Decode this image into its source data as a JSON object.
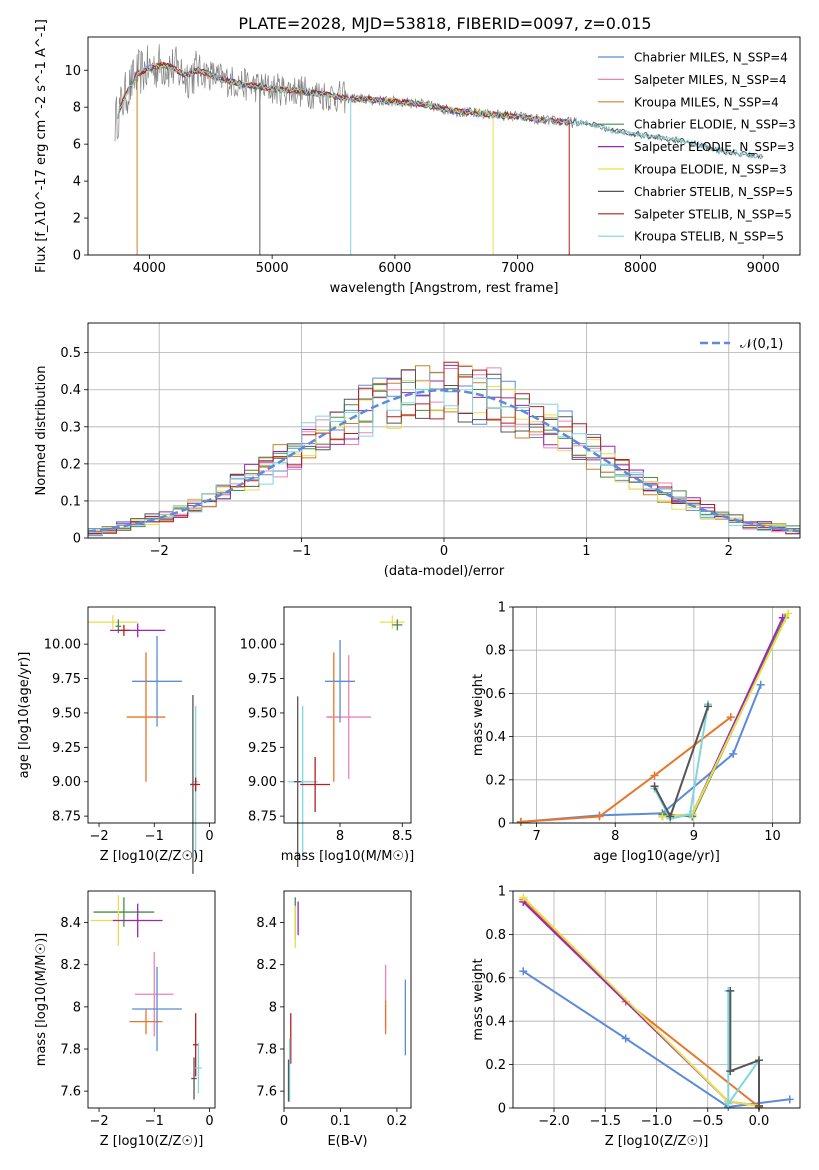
{
  "title": "PLATE=2028, MJD=53818, FIBERID=0097, z=0.015",
  "colors": {
    "chabrier_miles": "#5b8bd9",
    "salpeter_miles": "#ef82b5",
    "kroupa_miles": "#c8832a",
    "chabrier_elodie": "#4a8a4a",
    "salpeter_elodie": "#9a27b5",
    "kroupa_elodie": "#e6e04a",
    "chabrier_stelib": "#555555",
    "salpeter_stelib": "#b81d1d",
    "kroupa_stelib": "#7fd6df",
    "spectrum_data": "#808080",
    "orange_marker": "#e8752a"
  },
  "chart_data": [
    {
      "type": "line",
      "panel": "spectrum",
      "xlabel": "wavelength [Angstrom, rest frame]",
      "ylabel": "Flux [f_λ10^-17 erg cm^-2 s^-1 A^-1]",
      "xlim": [
        3500,
        9300
      ],
      "ylim": [
        0,
        11.8
      ],
      "xticks": [
        4000,
        5000,
        6000,
        7000,
        8000,
        9000
      ],
      "yticks": [
        0,
        2,
        4,
        6,
        8,
        10
      ],
      "legend_position": "top-right",
      "legend": [
        {
          "label": "Chabrier MILES, N_SSP=4",
          "color_key": "chabrier_miles"
        },
        {
          "label": "Salpeter MILES, N_SSP=4",
          "color_key": "salpeter_miles"
        },
        {
          "label": "Kroupa MILES, N_SSP=4",
          "color_key": "kroupa_miles"
        },
        {
          "label": "Chabrier ELODIE, N_SSP=3",
          "color_key": "chabrier_elodie"
        },
        {
          "label": "Salpeter ELODIE, N_SSP=3",
          "color_key": "salpeter_elodie"
        },
        {
          "label": "Kroupa ELODIE, N_SSP=3",
          "color_key": "kroupa_elodie"
        },
        {
          "label": "Chabrier STELIB, N_SSP=5",
          "color_key": "chabrier_stelib"
        },
        {
          "label": "Salpeter STELIB, N_SSP=5",
          "color_key": "salpeter_stelib"
        },
        {
          "label": "Kroupa STELIB, N_SSP=5",
          "color_key": "kroupa_stelib"
        }
      ],
      "continuum": {
        "x": [
          3720,
          3800,
          3900,
          4000,
          4100,
          4200,
          4300,
          4400,
          4600,
          4800,
          5000,
          5200,
          5400,
          5600,
          5800,
          6000,
          6200,
          6400,
          6600,
          6800,
          7000,
          7200,
          7400,
          7600,
          7800,
          8000,
          8200,
          8400,
          8600,
          8800,
          9000
        ],
        "y": [
          7.2,
          8.6,
          9.8,
          10.1,
          10.3,
          10.1,
          9.7,
          10.0,
          9.5,
          9.2,
          9.0,
          8.9,
          8.7,
          8.5,
          8.4,
          8.3,
          8.2,
          7.9,
          7.7,
          7.6,
          7.5,
          7.3,
          7.2,
          7.1,
          6.7,
          6.5,
          6.3,
          6.1,
          5.7,
          5.5,
          5.3
        ]
      }
    },
    {
      "type": "histogram",
      "panel": "residual_histogram",
      "xlabel": "(data-model)/error",
      "ylabel": "Normed distribution",
      "xlim": [
        -2.5,
        2.5
      ],
      "ylim": [
        0,
        0.58
      ],
      "xticks": [
        -2,
        -1,
        0,
        1,
        2
      ],
      "yticks": [
        0,
        0.1,
        0.2,
        0.3,
        0.4,
        0.5
      ],
      "grid": true,
      "legend_position": "top-right",
      "legend": [
        {
          "label": "𝒩(0,1)",
          "color_key": "chabrier_miles",
          "style": "dashed"
        }
      ],
      "bin_width": 0.1,
      "bin_start": -2.5,
      "reference_curve": "standard normal density"
    },
    {
      "type": "scatter",
      "panel": "age_vs_Z",
      "xlabel": "Z [log10(Z/Z☉)]",
      "ylabel": "age  [log10(age/yr)]",
      "xlim": [
        -2.2,
        0.1
      ],
      "ylim": [
        8.7,
        10.27
      ],
      "xticks": [
        -2,
        -1,
        0
      ],
      "yticks": [
        8.75,
        9.0,
        9.25,
        9.5,
        9.75,
        10.0
      ],
      "ytick_labels": [
        "8.75",
        "9.00",
        "9.25",
        "9.50",
        "9.75",
        "10.00"
      ],
      "points": [
        {
          "x": -1.75,
          "y": 10.16,
          "xerr": 0.45,
          "yerr": 0.05,
          "color_key": "kroupa_elodie"
        },
        {
          "x": -1.65,
          "y": 10.13,
          "xerr": 0.05,
          "yerr": 0.05,
          "color_key": "chabrier_elodie"
        },
        {
          "x": -1.3,
          "y": 10.1,
          "xerr": 0.5,
          "yerr": 0.05,
          "color_key": "salpeter_elodie"
        },
        {
          "x": -1.55,
          "y": 10.1,
          "xerr": 0.1,
          "yerr": 0.04,
          "color_key": "salpeter_stelib"
        },
        {
          "x": -1.15,
          "y": 9.47,
          "xerr": 0.35,
          "yerr": 0.47,
          "color_key": "orange_marker"
        },
        {
          "x": -0.95,
          "y": 9.73,
          "xerr": 0.45,
          "yerr": 0.33,
          "color_key": "chabrier_miles"
        },
        {
          "x": -0.25,
          "y": 9.0,
          "xerr": 0.05,
          "yerr": 0.55,
          "color_key": "kroupa_stelib"
        },
        {
          "x": -0.3,
          "y": 8.98,
          "xerr": 0.05,
          "yerr": 0.65,
          "color_key": "chabrier_stelib"
        },
        {
          "x": -0.25,
          "y": 8.98,
          "xerr": 0.08,
          "yerr": 0.05,
          "color_key": "salpeter_stelib"
        }
      ]
    },
    {
      "type": "scatter",
      "panel": "age_vs_mass",
      "xlabel": "mass [log10(M/M☉)]",
      "ylabel": "",
      "xlim": [
        7.55,
        8.57
      ],
      "ylim": [
        8.7,
        10.27
      ],
      "xticks": [
        8.0,
        8.5
      ],
      "yticks": [
        8.75,
        9.0,
        9.25,
        9.5,
        9.75,
        10.0
      ],
      "ytick_labels": [
        "8.75",
        "9.00",
        "9.25",
        "9.50",
        "9.75",
        "10.00"
      ],
      "points": [
        {
          "x": 8.42,
          "y": 10.16,
          "xerr": 0.1,
          "yerr": 0.05,
          "color_key": "kroupa_elodie"
        },
        {
          "x": 8.46,
          "y": 10.14,
          "xerr": 0.04,
          "yerr": 0.04,
          "color_key": "chabrier_elodie"
        },
        {
          "x": 7.95,
          "y": 9.47,
          "xerr": 0.05,
          "yerr": 0.47,
          "color_key": "orange_marker"
        },
        {
          "x": 8.07,
          "y": 9.47,
          "xerr": 0.18,
          "yerr": 0.45,
          "color_key": "salpeter_miles"
        },
        {
          "x": 8.0,
          "y": 9.73,
          "xerr": 0.12,
          "yerr": 0.3,
          "color_key": "chabrier_miles"
        },
        {
          "x": 7.7,
          "y": 9.0,
          "xerr": 0.12,
          "yerr": 0.55,
          "color_key": "kroupa_stelib"
        },
        {
          "x": 7.8,
          "y": 8.98,
          "xerr": 0.12,
          "yerr": 0.2,
          "color_key": "salpeter_stelib"
        },
        {
          "x": 7.66,
          "y": 9.0,
          "xerr": 0.03,
          "yerr": 0.62,
          "color_key": "chabrier_stelib"
        }
      ]
    },
    {
      "type": "line",
      "panel": "massweight_vs_age",
      "xlabel": "age  [log10(age/yr)]",
      "ylabel": "mass weight",
      "xlim": [
        6.7,
        10.35
      ],
      "ylim": [
        0,
        1.0
      ],
      "xticks": [
        7,
        8,
        9,
        10
      ],
      "yticks": [
        0,
        0.2,
        0.4,
        0.6,
        0.8,
        1.0
      ],
      "grid": true,
      "series": [
        {
          "color_key": "chabrier_miles",
          "x": [
            6.8,
            7.8,
            8.6,
            9.5,
            9.85
          ],
          "y": [
            0.005,
            0.035,
            0.045,
            0.32,
            0.64
          ]
        },
        {
          "color_key": "orange_marker",
          "x": [
            6.8,
            7.8,
            8.5,
            9.47
          ],
          "y": [
            0.005,
            0.03,
            0.22,
            0.49
          ]
        },
        {
          "color_key": "chabrier_elodie",
          "x": [
            8.6,
            8.98,
            10.16
          ],
          "y": [
            0.04,
            0.03,
            0.95
          ]
        },
        {
          "color_key": "salpeter_elodie",
          "x": [
            8.6,
            8.98,
            10.13
          ],
          "y": [
            0.03,
            0.04,
            0.95
          ]
        },
        {
          "color_key": "kroupa_elodie",
          "x": [
            8.6,
            8.98,
            10.2
          ],
          "y": [
            0.03,
            0.04,
            0.97
          ]
        },
        {
          "color_key": "kroupa_stelib",
          "x": [
            8.5,
            8.7,
            8.95,
            9.18
          ],
          "y": [
            0.16,
            0.02,
            0.04,
            0.55
          ]
        },
        {
          "color_key": "chabrier_stelib",
          "x": [
            8.5,
            8.7,
            9.18
          ],
          "y": [
            0.17,
            0.03,
            0.54
          ]
        }
      ]
    },
    {
      "type": "scatter",
      "panel": "mass_vs_Z",
      "xlabel": "Z [log10(Z/Z☉)]",
      "ylabel": "mass [log10(M/M☉)]",
      "xlim": [
        -2.2,
        0.1
      ],
      "ylim": [
        7.52,
        8.55
      ],
      "xticks": [
        -2,
        -1,
        0
      ],
      "yticks": [
        7.6,
        7.8,
        8.0,
        8.2,
        8.4
      ],
      "points": [
        {
          "x": -1.55,
          "y": 8.45,
          "xerr": 0.55,
          "yerr": 0.07,
          "color_key": "chabrier_elodie"
        },
        {
          "x": -1.65,
          "y": 8.41,
          "xerr": 0.5,
          "yerr": 0.12,
          "color_key": "kroupa_elodie"
        },
        {
          "x": -1.3,
          "y": 8.41,
          "xerr": 0.45,
          "yerr": 0.08,
          "color_key": "salpeter_elodie"
        },
        {
          "x": -1.0,
          "y": 8.06,
          "xerr": 0.35,
          "yerr": 0.2,
          "color_key": "salpeter_miles"
        },
        {
          "x": -1.15,
          "y": 7.93,
          "xerr": 0.3,
          "yerr": 0.06,
          "color_key": "orange_marker"
        },
        {
          "x": -0.95,
          "y": 7.99,
          "xerr": 0.45,
          "yerr": 0.2,
          "color_key": "chabrier_miles"
        },
        {
          "x": -0.25,
          "y": 7.82,
          "xerr": 0.05,
          "yerr": 0.15,
          "color_key": "salpeter_stelib"
        },
        {
          "x": -0.28,
          "y": 7.66,
          "xerr": 0.05,
          "yerr": 0.1,
          "color_key": "chabrier_stelib"
        },
        {
          "x": -0.2,
          "y": 7.71,
          "xerr": 0.06,
          "yerr": 0.12,
          "color_key": "kroupa_stelib"
        }
      ]
    },
    {
      "type": "scatter",
      "panel": "mass_vs_EBV",
      "xlabel": "E(B-V)",
      "ylabel": "",
      "xlim": [
        0.0,
        0.225
      ],
      "ylim": [
        7.52,
        8.55
      ],
      "xticks": [
        0.0,
        0.1,
        0.2
      ],
      "yticks": [
        7.6,
        7.8,
        8.0,
        8.2,
        8.4
      ],
      "points": [
        {
          "x": 0.02,
          "y": 8.42,
          "yerr": 0.1,
          "color_key": "chabrier_elodie"
        },
        {
          "x": 0.02,
          "y": 8.38,
          "yerr": 0.1,
          "color_key": "kroupa_elodie"
        },
        {
          "x": 0.025,
          "y": 8.42,
          "yerr": 0.08,
          "color_key": "salpeter_elodie"
        },
        {
          "x": 0.18,
          "y": 8.05,
          "yerr": 0.15,
          "color_key": "salpeter_miles"
        },
        {
          "x": 0.18,
          "y": 7.95,
          "yerr": 0.08,
          "color_key": "orange_marker"
        },
        {
          "x": 0.215,
          "y": 7.95,
          "yerr": 0.18,
          "color_key": "chabrier_miles"
        },
        {
          "x": 0.012,
          "y": 7.85,
          "yerr": 0.12,
          "color_key": "salpeter_stelib"
        },
        {
          "x": 0.01,
          "y": 7.7,
          "yerr": 0.15,
          "color_key": "kroupa_stelib"
        },
        {
          "x": 0.008,
          "y": 7.65,
          "yerr": 0.1,
          "color_key": "chabrier_stelib"
        }
      ]
    },
    {
      "type": "line",
      "panel": "massweight_vs_Z",
      "xlabel": "Z [log10(Z/Z☉)]",
      "ylabel": "mass weight",
      "xlim": [
        -2.4,
        0.4
      ],
      "ylim": [
        0,
        1.0
      ],
      "xticks": [
        -2.0,
        -1.5,
        -1.0,
        -0.5,
        0.0
      ],
      "xtick_labels": [
        "−2.0",
        "−1.5",
        "−1.0",
        "−0.5",
        "0.0"
      ],
      "yticks": [
        0,
        0.2,
        0.4,
        0.6,
        0.8,
        1.0
      ],
      "grid": true,
      "series": [
        {
          "color_key": "chabrier_miles",
          "x": [
            -2.3,
            -1.3,
            -0.3,
            0.3
          ],
          "y": [
            0.63,
            0.32,
            0.005,
            0.04
          ]
        },
        {
          "color_key": "orange_marker",
          "x": [
            -2.3,
            -1.3,
            0.0
          ],
          "y": [
            0.96,
            0.49,
            0.005
          ]
        },
        {
          "color_key": "salpeter_elodie",
          "x": [
            -2.3,
            -0.3,
            0.0
          ],
          "y": [
            0.95,
            0.03,
            0.01
          ]
        },
        {
          "color_key": "kroupa_elodie",
          "x": [
            -2.3,
            -0.3,
            0.0
          ],
          "y": [
            0.97,
            0.03,
            0.01
          ]
        },
        {
          "color_key": "kroupa_stelib",
          "x": [
            -0.3,
            -0.3,
            0.0
          ],
          "y": [
            0.54,
            0.02,
            0.22
          ]
        },
        {
          "color_key": "chabrier_stelib",
          "x": [
            -0.28,
            -0.28,
            0.0,
            0.0
          ],
          "y": [
            0.54,
            0.17,
            0.22,
            0.01
          ]
        }
      ]
    }
  ]
}
